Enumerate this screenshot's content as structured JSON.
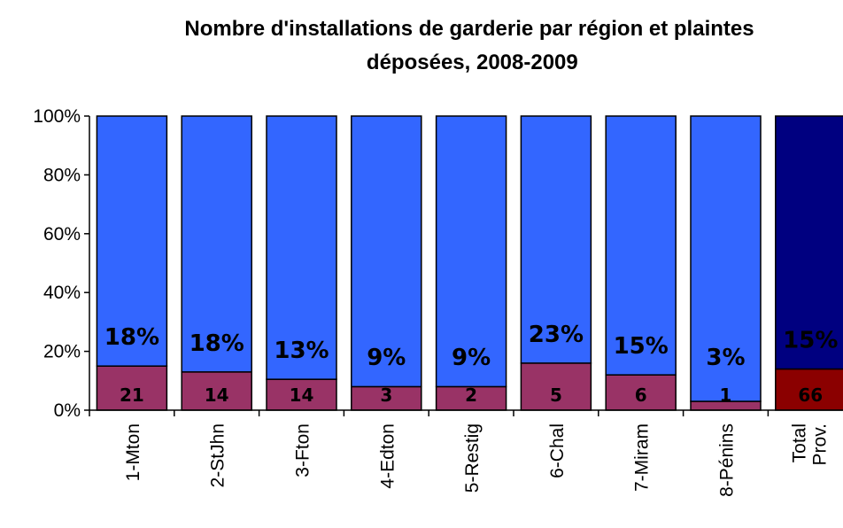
{
  "chart_data": {
    "type": "stacked_bar_100",
    "title": "Nombre d'installations de garderie par région et plaintes déposées, 2008-2009",
    "categories": [
      "1-Mton",
      "2-StJhn",
      "3-Fton",
      "4-Edton",
      "5-Restig",
      "6-Chal",
      "7-Miram",
      "8-Pénins",
      "Total Prov."
    ],
    "series": [
      {
        "colors": [
          "#993366",
          "#993366",
          "#993366",
          "#993366",
          "#993366",
          "#993366",
          "#993366",
          "#993366",
          "#8b0000"
        ],
        "values": [
          15,
          13,
          10.5,
          8,
          8,
          16,
          12,
          3,
          14
        ],
        "counts": [
          21,
          14,
          14,
          3,
          2,
          5,
          6,
          1,
          66
        ]
      },
      {
        "colors": [
          "#3366ff",
          "#3366ff",
          "#3366ff",
          "#3366ff",
          "#3366ff",
          "#3366ff",
          "#3366ff",
          "#3366ff",
          "#000080"
        ],
        "values": [
          85,
          87,
          89.5,
          92,
          92,
          84,
          88,
          97,
          86
        ]
      }
    ],
    "rate_labels": [
      "18%",
      "18%",
      "13%",
      "9%",
      "9%",
      "23%",
      "15%",
      "3%",
      "15%"
    ],
    "ylim": [
      0,
      100
    ],
    "yticks": [
      {
        "value": 0,
        "label": "0%"
      },
      {
        "value": 20,
        "label": "20%"
      },
      {
        "value": 40,
        "label": "40%"
      },
      {
        "value": 60,
        "label": "60%"
      },
      {
        "value": 80,
        "label": "80%"
      },
      {
        "value": 100,
        "label": "100%"
      }
    ]
  }
}
